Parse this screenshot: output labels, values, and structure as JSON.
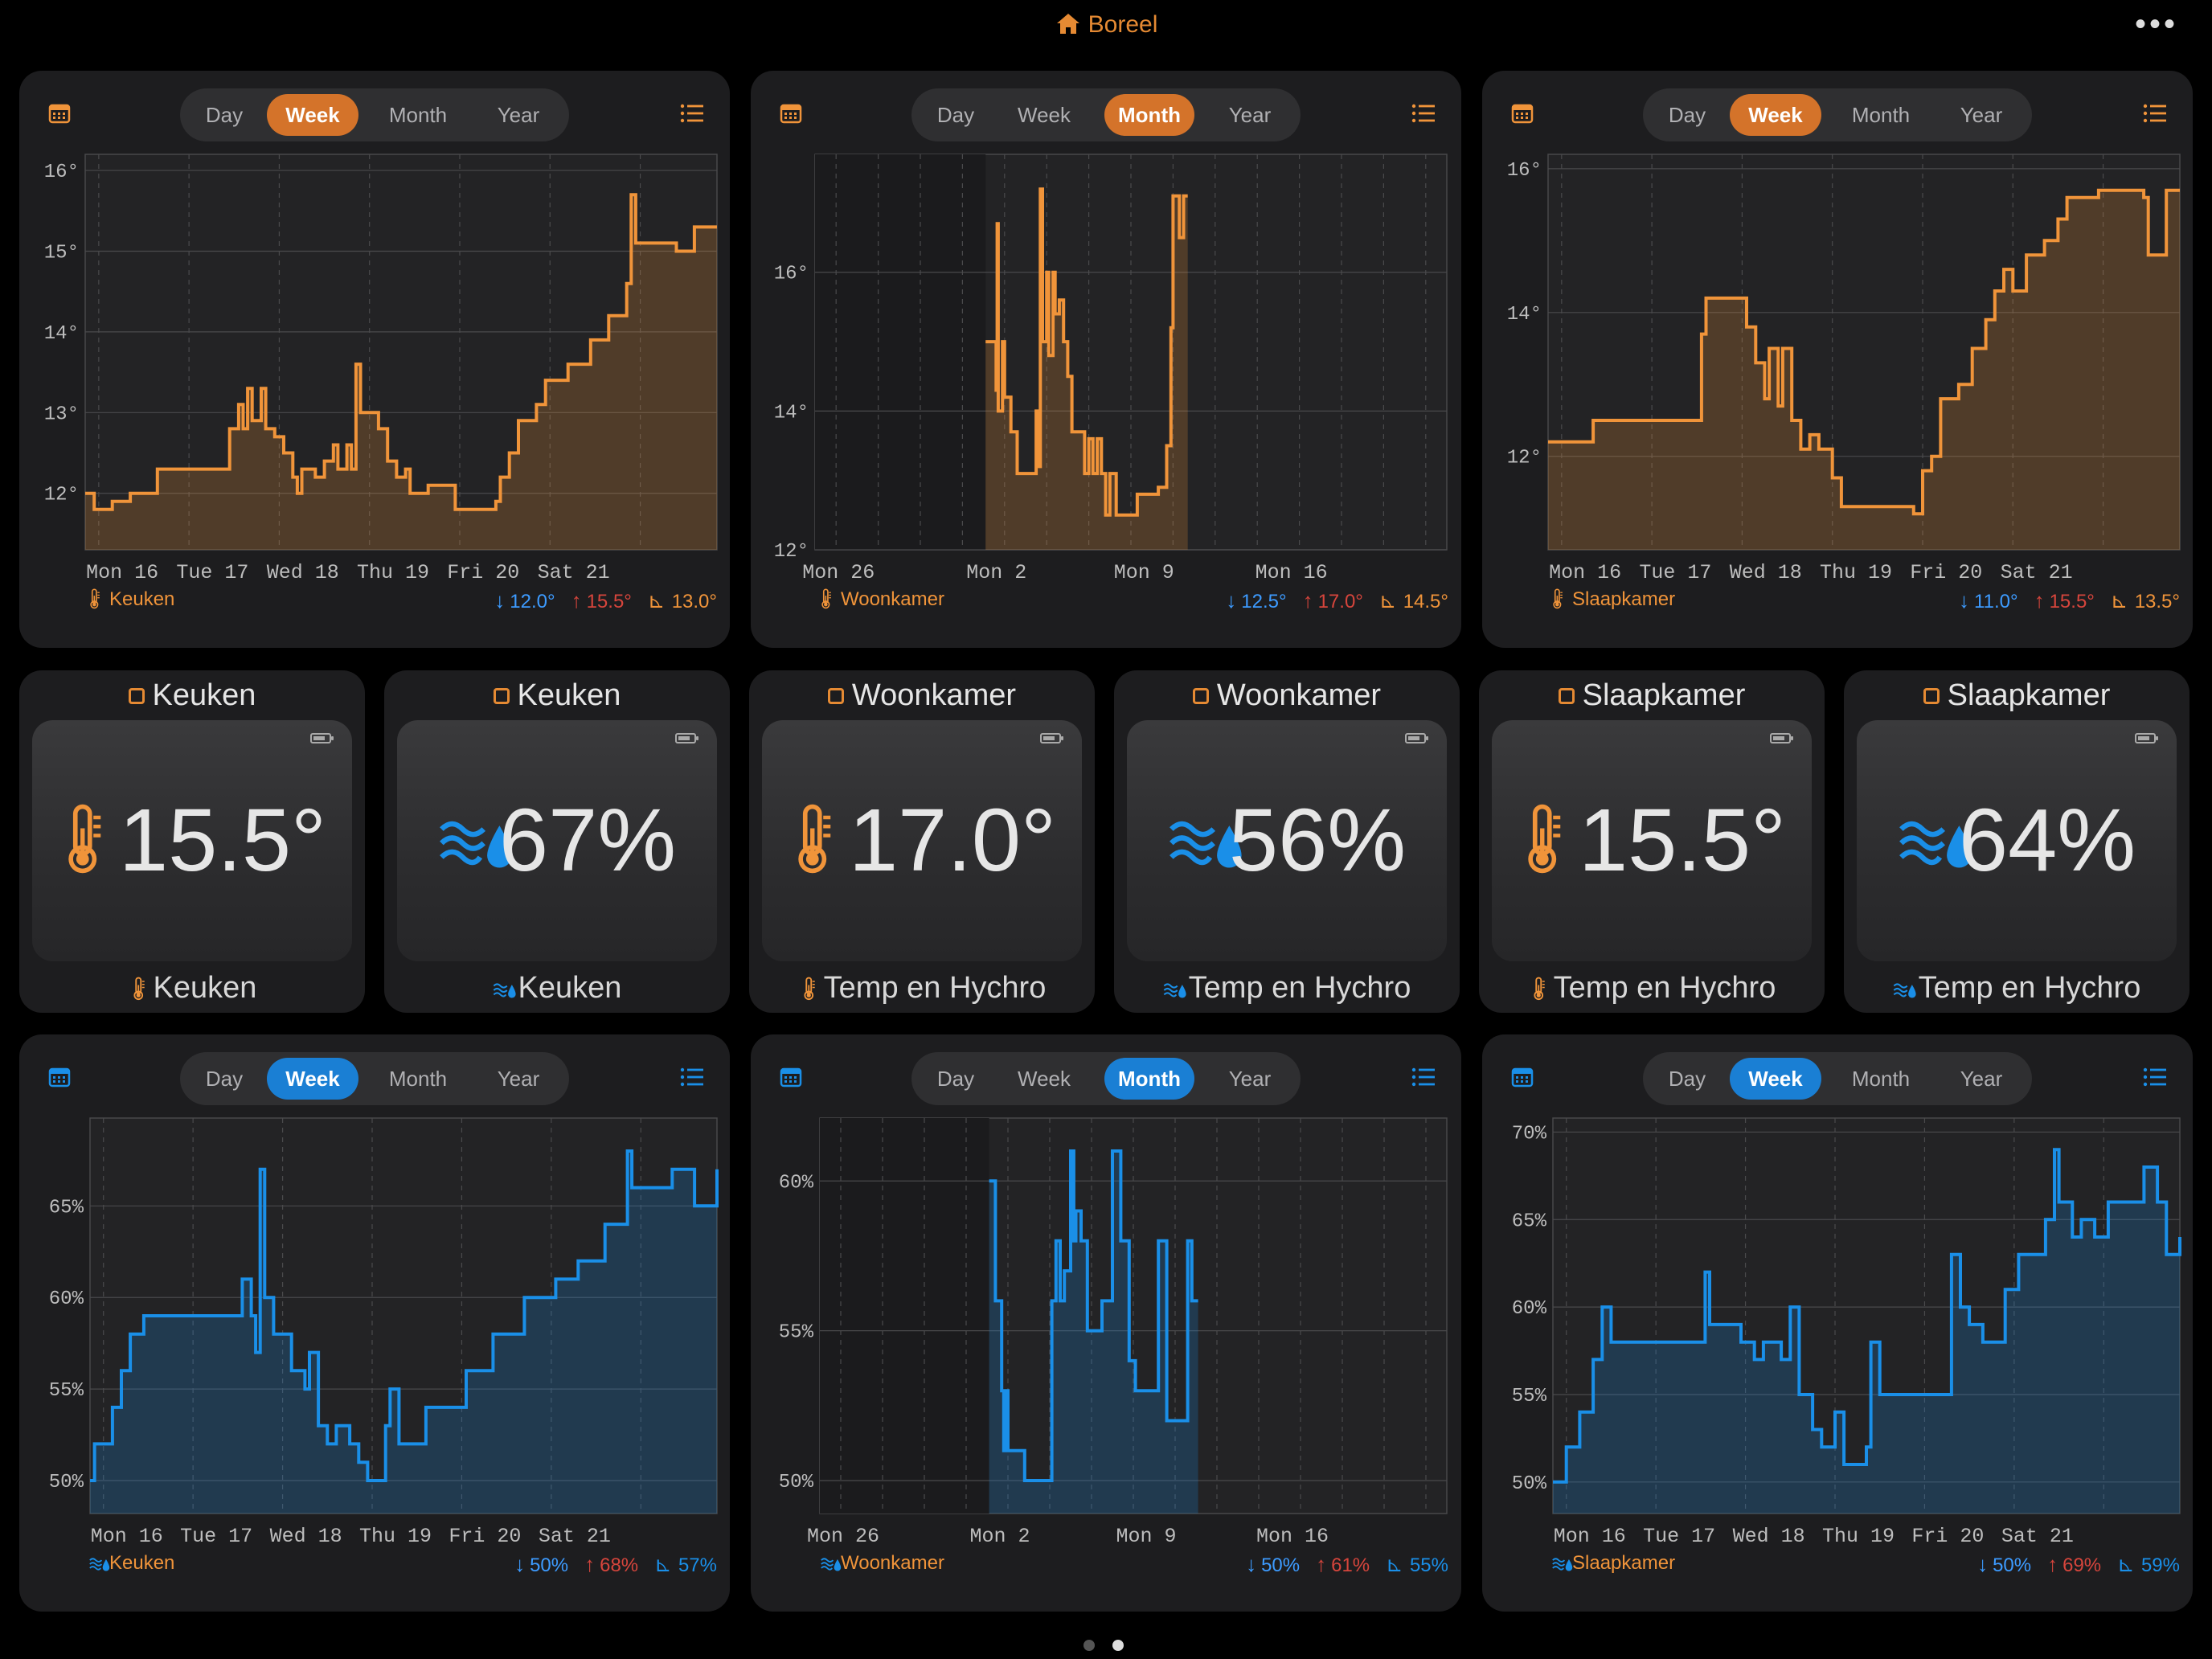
{
  "app": {
    "title": "Boreel",
    "accent": "#e58a33"
  },
  "segments": [
    "Day",
    "Week",
    "Month",
    "Year"
  ],
  "charts": [
    {
      "id": "temp-keuken",
      "kind": "temp",
      "color": "#f0943a",
      "active": 1,
      "label": "Keuken",
      "stats": {
        "min": "12.0°",
        "max": "15.5°",
        "avg": "13.0°"
      },
      "x_ticks": [
        "Mon 16",
        "Tue 17",
        "Wed 18",
        "Thu 19",
        "Fri 20",
        "Sat 21"
      ],
      "y_ticks": [
        "12°",
        "13°",
        "14°",
        "15°",
        "16°"
      ],
      "ylim": [
        11.3,
        16.2
      ],
      "x_days": [
        0,
        7
      ],
      "series": [
        [
          0,
          12.0
        ],
        [
          0.1,
          11.8
        ],
        [
          0.3,
          11.9
        ],
        [
          0.5,
          12.0
        ],
        [
          0.8,
          12.3
        ],
        [
          1.6,
          12.3
        ],
        [
          1.6,
          12.8
        ],
        [
          1.7,
          13.1
        ],
        [
          1.75,
          12.8
        ],
        [
          1.8,
          13.3
        ],
        [
          1.85,
          12.9
        ],
        [
          1.95,
          13.3
        ],
        [
          2.0,
          12.8
        ],
        [
          2.1,
          12.7
        ],
        [
          2.2,
          12.5
        ],
        [
          2.3,
          12.2
        ],
        [
          2.35,
          12.0
        ],
        [
          2.4,
          12.3
        ],
        [
          2.55,
          12.2
        ],
        [
          2.65,
          12.4
        ],
        [
          2.75,
          12.6
        ],
        [
          2.8,
          12.3
        ],
        [
          2.9,
          12.6
        ],
        [
          2.95,
          12.3
        ],
        [
          3.0,
          13.6
        ],
        [
          3.05,
          13.0
        ],
        [
          3.25,
          12.8
        ],
        [
          3.35,
          12.4
        ],
        [
          3.45,
          12.2
        ],
        [
          3.55,
          12.3
        ],
        [
          3.6,
          12.0
        ],
        [
          3.8,
          12.1
        ],
        [
          4.0,
          12.1
        ],
        [
          4.1,
          11.8
        ],
        [
          4.5,
          11.8
        ],
        [
          4.55,
          11.9
        ],
        [
          4.6,
          12.2
        ],
        [
          4.7,
          12.5
        ],
        [
          4.8,
          12.9
        ],
        [
          5.0,
          13.1
        ],
        [
          5.1,
          13.4
        ],
        [
          5.35,
          13.6
        ],
        [
          5.6,
          13.9
        ],
        [
          5.8,
          14.2
        ],
        [
          6.0,
          14.6
        ],
        [
          6.05,
          15.7
        ],
        [
          6.1,
          15.1
        ],
        [
          6.3,
          15.1
        ],
        [
          6.55,
          15.0
        ],
        [
          6.75,
          15.3
        ],
        [
          7.0,
          15.3
        ]
      ]
    },
    {
      "id": "temp-woonkamer",
      "kind": "temp",
      "color": "#f0943a",
      "active": 2,
      "label": "Woonkamer",
      "stats": {
        "min": "12.5°",
        "max": "17.0°",
        "avg": "14.5°"
      },
      "x_ticks": [
        "Mon 26",
        "Mon 2",
        "Mon 9",
        "Mon 16"
      ],
      "y_ticks": [
        "12°",
        "14°",
        "16°"
      ],
      "ylim": [
        12.0,
        17.7
      ],
      "x_days": [
        0,
        30
      ],
      "nodata_until": 8.1,
      "series": [
        [
          8.1,
          15.0
        ],
        [
          8.5,
          15.0
        ],
        [
          8.6,
          14.3
        ],
        [
          8.65,
          16.7
        ],
        [
          8.7,
          14.0
        ],
        [
          8.9,
          15.0
        ],
        [
          9.0,
          14.2
        ],
        [
          9.3,
          13.7
        ],
        [
          9.6,
          13.1
        ],
        [
          10.4,
          13.1
        ],
        [
          10.5,
          14.0
        ],
        [
          10.6,
          13.2
        ],
        [
          10.7,
          17.2
        ],
        [
          10.8,
          15.0
        ],
        [
          11.0,
          16.0
        ],
        [
          11.1,
          14.8
        ],
        [
          11.3,
          16.0
        ],
        [
          11.4,
          15.4
        ],
        [
          11.6,
          15.6
        ],
        [
          11.8,
          15.0
        ],
        [
          12.0,
          14.5
        ],
        [
          12.2,
          13.7
        ],
        [
          12.8,
          13.1
        ],
        [
          13.0,
          13.6
        ],
        [
          13.2,
          13.1
        ],
        [
          13.4,
          13.6
        ],
        [
          13.6,
          13.1
        ],
        [
          13.8,
          12.5
        ],
        [
          14.0,
          13.1
        ],
        [
          14.3,
          12.5
        ],
        [
          15.0,
          12.5
        ],
        [
          15.3,
          12.8
        ],
        [
          16.3,
          12.9
        ],
        [
          16.7,
          13.5
        ],
        [
          16.9,
          15.2
        ],
        [
          17.0,
          17.1
        ],
        [
          17.3,
          16.5
        ],
        [
          17.5,
          17.1
        ],
        [
          17.7,
          17.1
        ]
      ]
    },
    {
      "id": "temp-slaapkamer",
      "kind": "temp",
      "color": "#f0943a",
      "active": 1,
      "label": "Slaapkamer",
      "stats": {
        "min": "11.0°",
        "max": "15.5°",
        "avg": "13.5°"
      },
      "x_ticks": [
        "Mon 16",
        "Tue 17",
        "Wed 18",
        "Thu 19",
        "Fri 20",
        "Sat 21"
      ],
      "y_ticks": [
        "12°",
        "14°",
        "16°"
      ],
      "ylim": [
        10.7,
        16.2
      ],
      "x_days": [
        0,
        7
      ],
      "series": [
        [
          0,
          12.2
        ],
        [
          0.45,
          12.2
        ],
        [
          0.5,
          12.5
        ],
        [
          1.6,
          12.5
        ],
        [
          1.7,
          13.7
        ],
        [
          1.75,
          14.2
        ],
        [
          2.1,
          14.2
        ],
        [
          2.2,
          13.8
        ],
        [
          2.3,
          13.3
        ],
        [
          2.4,
          12.8
        ],
        [
          2.45,
          13.5
        ],
        [
          2.55,
          12.7
        ],
        [
          2.6,
          13.5
        ],
        [
          2.7,
          12.5
        ],
        [
          2.8,
          12.1
        ],
        [
          2.9,
          12.3
        ],
        [
          3.0,
          12.1
        ],
        [
          3.15,
          11.7
        ],
        [
          3.25,
          11.3
        ],
        [
          3.35,
          11.3
        ],
        [
          3.5,
          11.3
        ],
        [
          4.0,
          11.3
        ],
        [
          4.05,
          11.2
        ],
        [
          4.15,
          11.8
        ],
        [
          4.25,
          12.0
        ],
        [
          4.35,
          12.8
        ],
        [
          4.55,
          13.0
        ],
        [
          4.7,
          13.5
        ],
        [
          4.85,
          13.9
        ],
        [
          4.95,
          14.3
        ],
        [
          5.05,
          14.6
        ],
        [
          5.15,
          14.3
        ],
        [
          5.3,
          14.8
        ],
        [
          5.5,
          15.0
        ],
        [
          5.65,
          15.3
        ],
        [
          5.75,
          15.6
        ],
        [
          5.95,
          15.6
        ],
        [
          6.1,
          15.7
        ],
        [
          6.3,
          15.7
        ],
        [
          6.5,
          15.7
        ],
        [
          6.6,
          15.6
        ],
        [
          6.65,
          14.8
        ],
        [
          6.85,
          15.7
        ],
        [
          7.0,
          15.7
        ]
      ]
    },
    {
      "id": "hum-keuken",
      "kind": "hum",
      "color": "#1a8fe8",
      "active": 1,
      "label": "Keuken",
      "stats": {
        "min": "50%",
        "max": "68%",
        "avg": "57%"
      },
      "x_ticks": [
        "Mon 16",
        "Tue 17",
        "Wed 18",
        "Thu 19",
        "Fri 20",
        "Sat 21"
      ],
      "y_ticks": [
        "50%",
        "55%",
        "60%",
        "65%"
      ],
      "ylim": [
        48.2,
        69.8
      ],
      "x_days": [
        0,
        7
      ],
      "series": [
        [
          0,
          50.0
        ],
        [
          0.05,
          52.0
        ],
        [
          0.25,
          54.0
        ],
        [
          0.35,
          56.0
        ],
        [
          0.45,
          58.0
        ],
        [
          0.6,
          59.0
        ],
        [
          1.65,
          59.0
        ],
        [
          1.7,
          61.0
        ],
        [
          1.8,
          59.0
        ],
        [
          1.85,
          57.0
        ],
        [
          1.9,
          67.0
        ],
        [
          1.95,
          60.0
        ],
        [
          2.05,
          58.0
        ],
        [
          2.25,
          56.0
        ],
        [
          2.4,
          55.0
        ],
        [
          2.45,
          57.0
        ],
        [
          2.55,
          53.0
        ],
        [
          2.65,
          52.0
        ],
        [
          2.75,
          53.0
        ],
        [
          2.9,
          52.0
        ],
        [
          3.0,
          51.0
        ],
        [
          3.1,
          50.0
        ],
        [
          3.3,
          53.0
        ],
        [
          3.35,
          55.0
        ],
        [
          3.45,
          52.0
        ],
        [
          3.75,
          54.0
        ],
        [
          4.2,
          56.0
        ],
        [
          4.5,
          58.0
        ],
        [
          4.85,
          60.0
        ],
        [
          5.2,
          61.0
        ],
        [
          5.45,
          62.0
        ],
        [
          5.75,
          64.0
        ],
        [
          6.0,
          68.0
        ],
        [
          6.05,
          66.0
        ],
        [
          6.5,
          67.0
        ],
        [
          6.75,
          65.0
        ],
        [
          7.0,
          67.0
        ]
      ]
    },
    {
      "id": "hum-woonkamer",
      "kind": "hum",
      "color": "#1a8fe8",
      "active": 2,
      "label": "Woonkamer",
      "stats": {
        "min": "50%",
        "max": "61%",
        "avg": "55%"
      },
      "x_ticks": [
        "Mon 26",
        "Mon 2",
        "Mon 9",
        "Mon 16"
      ],
      "y_ticks": [
        "50%",
        "55%",
        "60%"
      ],
      "ylim": [
        48.9,
        62.1
      ],
      "x_days": [
        0,
        30
      ],
      "nodata_until": 8.1,
      "series": [
        [
          8.1,
          60.0
        ],
        [
          8.4,
          56.0
        ],
        [
          8.7,
          53.0
        ],
        [
          8.8,
          51.0
        ],
        [
          8.85,
          53.0
        ],
        [
          9.0,
          51.0
        ],
        [
          9.3,
          51.0
        ],
        [
          9.8,
          50.0
        ],
        [
          11.0,
          50.0
        ],
        [
          11.1,
          56.0
        ],
        [
          11.3,
          58.0
        ],
        [
          11.5,
          56.0
        ],
        [
          11.7,
          57.0
        ],
        [
          12.0,
          61.0
        ],
        [
          12.15,
          58.0
        ],
        [
          12.25,
          59.0
        ],
        [
          12.5,
          58.0
        ],
        [
          12.8,
          55.0
        ],
        [
          13.2,
          55.0
        ],
        [
          13.5,
          56.0
        ],
        [
          14.0,
          61.0
        ],
        [
          14.4,
          58.0
        ],
        [
          14.8,
          54.0
        ],
        [
          15.1,
          53.0
        ],
        [
          15.6,
          53.0
        ],
        [
          16.2,
          58.0
        ],
        [
          16.6,
          52.0
        ],
        [
          17.5,
          52.0
        ],
        [
          17.6,
          58.0
        ],
        [
          17.8,
          56.0
        ],
        [
          18.1,
          56.0
        ]
      ]
    },
    {
      "id": "hum-slaapkamer",
      "kind": "hum",
      "color": "#1a8fe8",
      "active": 1,
      "label": "Slaapkamer",
      "stats": {
        "min": "50%",
        "max": "69%",
        "avg": "59%"
      },
      "x_ticks": [
        "Mon 16",
        "Tue 17",
        "Wed 18",
        "Thu 19",
        "Fri 20",
        "Sat 21"
      ],
      "y_ticks": [
        "50%",
        "55%",
        "60%",
        "65%",
        "70%"
      ],
      "ylim": [
        48.2,
        70.8
      ],
      "x_days": [
        0,
        7
      ],
      "series": [
        [
          0,
          50.0
        ],
        [
          0.15,
          52.0
        ],
        [
          0.3,
          54.0
        ],
        [
          0.45,
          57.0
        ],
        [
          0.55,
          60.0
        ],
        [
          0.65,
          58.0
        ],
        [
          1.5,
          58.0
        ],
        [
          1.7,
          62.0
        ],
        [
          1.75,
          59.0
        ],
        [
          2.1,
          58.0
        ],
        [
          2.25,
          57.0
        ],
        [
          2.35,
          58.0
        ],
        [
          2.55,
          57.0
        ],
        [
          2.65,
          60.0
        ],
        [
          2.75,
          55.0
        ],
        [
          2.9,
          53.0
        ],
        [
          3.0,
          52.0
        ],
        [
          3.15,
          54.0
        ],
        [
          3.25,
          51.0
        ],
        [
          3.5,
          52.0
        ],
        [
          3.55,
          58.0
        ],
        [
          3.65,
          55.0
        ],
        [
          4.0,
          55.0
        ],
        [
          4.4,
          55.0
        ],
        [
          4.45,
          63.0
        ],
        [
          4.55,
          60.0
        ],
        [
          4.65,
          59.0
        ],
        [
          4.8,
          58.0
        ],
        [
          5.05,
          61.0
        ],
        [
          5.2,
          63.0
        ],
        [
          5.4,
          63.0
        ],
        [
          5.5,
          65.0
        ],
        [
          5.6,
          69.0
        ],
        [
          5.65,
          66.0
        ],
        [
          5.8,
          64.0
        ],
        [
          5.9,
          65.0
        ],
        [
          6.05,
          64.0
        ],
        [
          6.2,
          66.0
        ],
        [
          6.55,
          66.0
        ],
        [
          6.6,
          68.0
        ],
        [
          6.75,
          66.0
        ],
        [
          6.85,
          63.0
        ],
        [
          7.0,
          64.0
        ]
      ]
    }
  ],
  "tiles": [
    {
      "kind": "temp",
      "title": "Keuken",
      "value": "15.5°",
      "footer": "Keuken",
      "battery": 0.8
    },
    {
      "kind": "hum",
      "title": "Keuken",
      "value": "67%",
      "footer": "Keuken",
      "battery": 0.8
    },
    {
      "kind": "temp",
      "title": "Woonkamer",
      "value": "17.0°",
      "footer": "Temp en Hychro",
      "battery": 0.8
    },
    {
      "kind": "hum",
      "title": "Woonkamer",
      "value": "56%",
      "footer": "Temp en Hychro",
      "battery": 0.8
    },
    {
      "kind": "temp",
      "title": "Slaapkamer",
      "value": "15.5°",
      "footer": "Temp en Hychro",
      "battery": 0.8
    },
    {
      "kind": "hum",
      "title": "Slaapkamer",
      "value": "64%",
      "footer": "Temp en Hychro",
      "battery": 0.8
    }
  ],
  "colors": {
    "temp": "#f0943a",
    "hum": "#1a8fe8",
    "min": "#3d9bff",
    "max": "#d6453c",
    "temp_active": "#d4732a",
    "hum_active": "#1a7fd4"
  },
  "pager": {
    "pages": 2,
    "current": 2
  }
}
